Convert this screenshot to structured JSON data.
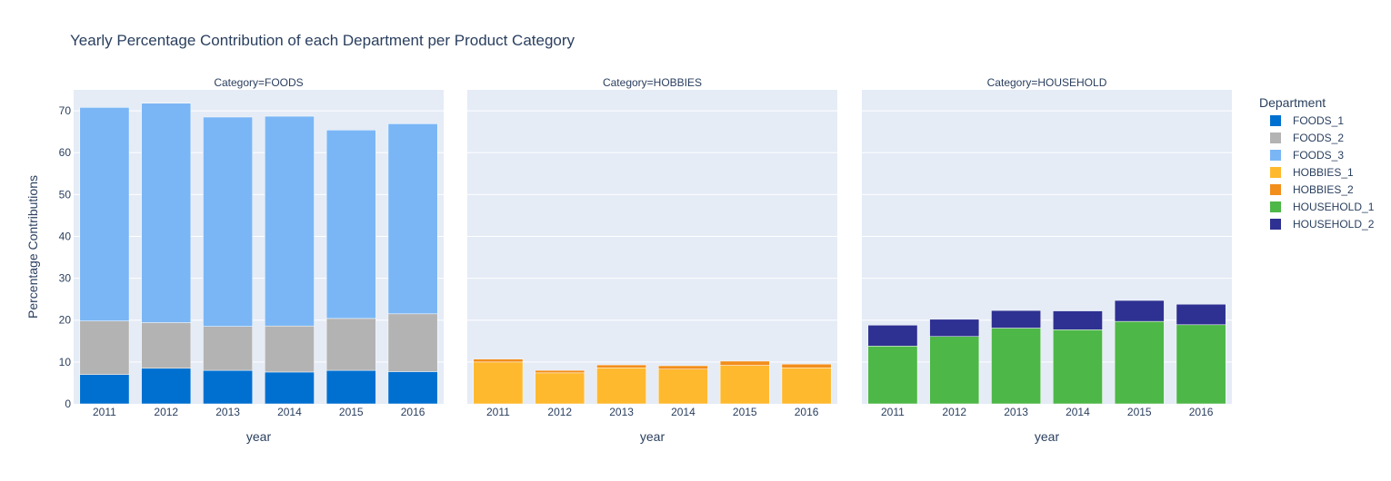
{
  "chart_data": {
    "type": "bar",
    "barmode": "stack",
    "title": "Yearly Percentage Contribution of each Department per Product Category",
    "ylabel": "Percentage Contributions",
    "xlabel": "year",
    "ylim": [
      0,
      75
    ],
    "yticks": [
      0,
      10,
      20,
      30,
      40,
      50,
      60,
      70
    ],
    "categories": [
      "2011",
      "2012",
      "2013",
      "2014",
      "2015",
      "2016"
    ],
    "legend": {
      "title": "Department",
      "placement": "right",
      "items": [
        {
          "name": "FOODS_1",
          "color": "#0070d0"
        },
        {
          "name": "FOODS_2",
          "color": "#b3b3b3"
        },
        {
          "name": "FOODS_3",
          "color": "#7ab6f5"
        },
        {
          "name": "HOBBIES_1",
          "color": "#ffb92e"
        },
        {
          "name": "HOBBIES_2",
          "color": "#f28e1c"
        },
        {
          "name": "HOUSEHOLD_1",
          "color": "#4db748"
        },
        {
          "name": "HOUSEHOLD_2",
          "color": "#2e3192"
        }
      ]
    },
    "panels": [
      {
        "title": "Category=FOODS",
        "series": [
          {
            "name": "FOODS_1",
            "color": "#0070d0",
            "values": [
              7.0,
              8.5,
              8.0,
              7.6,
              8.0,
              7.7
            ]
          },
          {
            "name": "FOODS_2",
            "color": "#b3b3b3",
            "values": [
              12.8,
              10.9,
              10.5,
              11.0,
              12.4,
              13.8
            ]
          },
          {
            "name": "FOODS_3",
            "color": "#7ab6f5",
            "values": [
              51.0,
              52.4,
              50.0,
              50.1,
              45.0,
              45.4
            ]
          }
        ]
      },
      {
        "title": "Category=HOBBIES",
        "series": [
          {
            "name": "HOBBIES_1",
            "color": "#ffb92e",
            "values": [
              10.0,
              7.4,
              8.6,
              8.3,
              9.2,
              8.6
            ]
          },
          {
            "name": "HOBBIES_2",
            "color": "#f28e1c",
            "values": [
              0.7,
              0.6,
              0.7,
              0.8,
              1.0,
              0.9
            ]
          }
        ]
      },
      {
        "title": "Category=HOUSEHOLD",
        "series": [
          {
            "name": "HOUSEHOLD_1",
            "color": "#4db748",
            "values": [
              13.8,
              16.1,
              18.1,
              17.7,
              19.7,
              18.9
            ]
          },
          {
            "name": "HOUSEHOLD_2",
            "color": "#2e3192",
            "values": [
              5.0,
              4.1,
              4.2,
              4.5,
              5.0,
              4.9
            ]
          }
        ]
      }
    ],
    "grid": true,
    "plot_bgcolor": "#e5ecf6"
  }
}
